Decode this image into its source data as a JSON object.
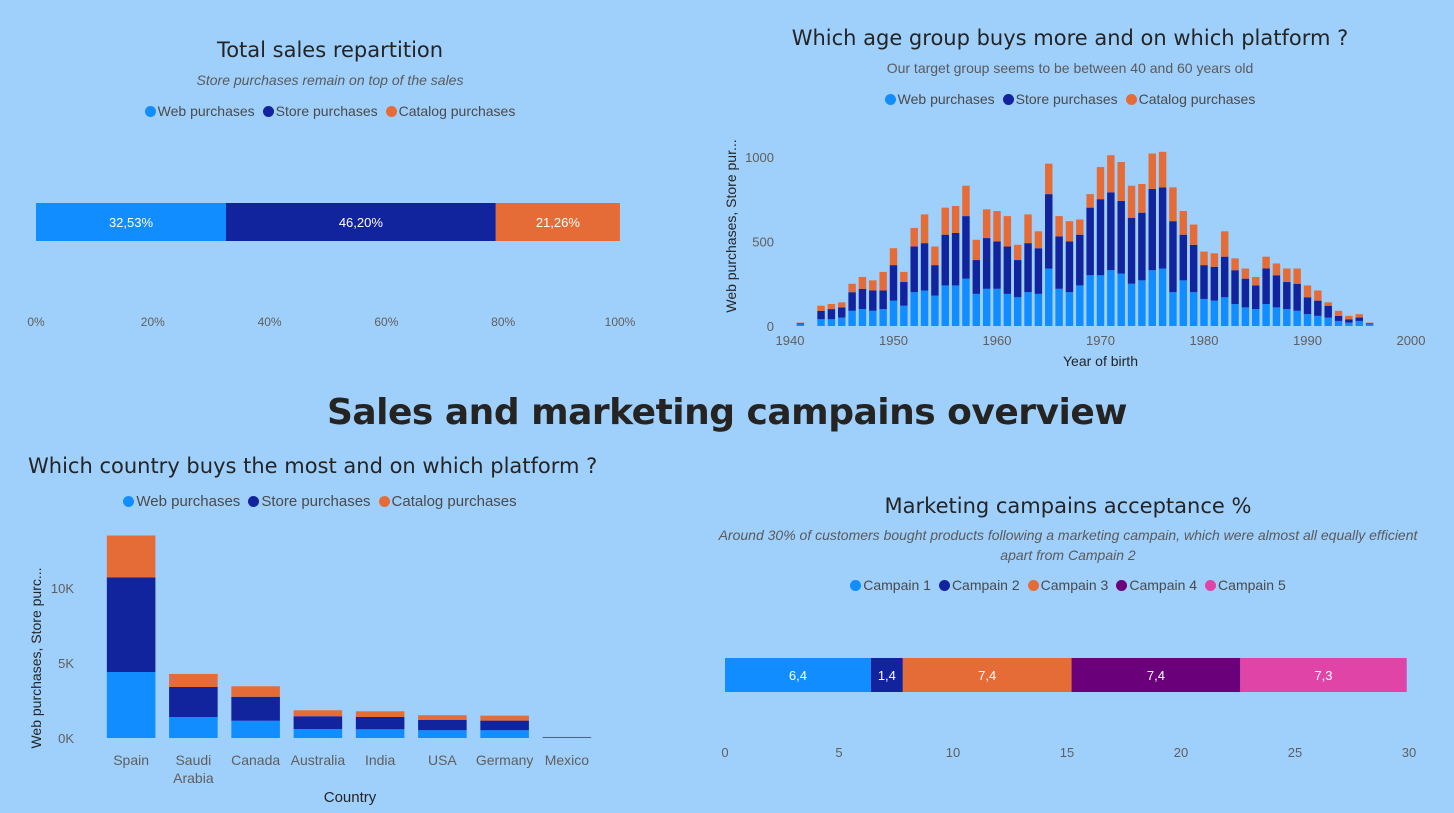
{
  "dashboard": {
    "title": "Sales and marketing campains overview"
  },
  "colors": {
    "web": "#118dff",
    "store": "#12239e",
    "catalog": "#e66c37",
    "campaign4": "#6b007b",
    "campaign5": "#e044a7",
    "background": "#9fd0fc"
  },
  "chart_data": [
    {
      "id": "total-sales",
      "type": "bar",
      "orientation": "horizontal-100pct-stacked",
      "title": "Total sales repartition",
      "subtitle": "Store purchases remain on top of the sales",
      "legend_position": "top-center",
      "series": [
        {
          "name": "Web purchases",
          "value": 32.53,
          "label": "32,53%",
          "color_key": "web"
        },
        {
          "name": "Store purchases",
          "value": 46.2,
          "label": "46,20%",
          "color_key": "store"
        },
        {
          "name": "Catalog purchases",
          "value": 21.26,
          "label": "21,26%",
          "color_key": "catalog"
        }
      ],
      "xlim": [
        0,
        100
      ],
      "ticks": [
        "0%",
        "20%",
        "40%",
        "60%",
        "80%",
        "100%"
      ]
    },
    {
      "id": "age-group",
      "type": "bar",
      "orientation": "vertical-stacked",
      "title": "Which age group buys more and on which platform ?",
      "subtitle": "Our target group seems to be between 40 and 60 years old",
      "xlabel": "Year of birth",
      "ylabel": "Web purchases, Store pur...",
      "legend_position": "top-center",
      "xlim": [
        1940,
        2000
      ],
      "ylim": [
        0,
        1100
      ],
      "xticks": [
        "1940",
        "1950",
        "1960",
        "1970",
        "1980",
        "1990",
        "2000"
      ],
      "yticks": [
        "0",
        "500",
        "1000"
      ],
      "x": [
        1941,
        1943,
        1944,
        1945,
        1946,
        1947,
        1948,
        1949,
        1950,
        1951,
        1952,
        1953,
        1954,
        1955,
        1956,
        1957,
        1958,
        1959,
        1960,
        1961,
        1962,
        1963,
        1964,
        1965,
        1966,
        1967,
        1968,
        1969,
        1970,
        1971,
        1972,
        1973,
        1974,
        1975,
        1976,
        1977,
        1978,
        1979,
        1980,
        1981,
        1982,
        1983,
        1984,
        1985,
        1986,
        1987,
        1988,
        1989,
        1990,
        1991,
        1992,
        1993,
        1994,
        1995,
        1996
      ],
      "series": [
        {
          "name": "Web purchases",
          "values": [
            10,
            40,
            40,
            50,
            90,
            100,
            90,
            100,
            150,
            120,
            200,
            210,
            180,
            240,
            240,
            280,
            190,
            220,
            220,
            190,
            170,
            200,
            190,
            340,
            220,
            200,
            240,
            300,
            300,
            330,
            310,
            250,
            270,
            330,
            340,
            200,
            270,
            200,
            160,
            150,
            170,
            130,
            110,
            100,
            130,
            110,
            100,
            90,
            70,
            60,
            50,
            30,
            20,
            30,
            10
          ]
        },
        {
          "name": "Store purchases",
          "values": [
            5,
            50,
            60,
            60,
            110,
            120,
            120,
            110,
            210,
            140,
            270,
            280,
            180,
            300,
            310,
            370,
            200,
            300,
            280,
            280,
            220,
            290,
            270,
            440,
            310,
            300,
            300,
            400,
            450,
            460,
            430,
            390,
            400,
            480,
            480,
            420,
            270,
            280,
            200,
            200,
            240,
            200,
            170,
            140,
            210,
            190,
            160,
            160,
            100,
            90,
            70,
            30,
            20,
            20,
            5
          ]
        },
        {
          "name": "Catalog purchases",
          "values": [
            5,
            30,
            30,
            30,
            50,
            70,
            60,
            110,
            100,
            60,
            110,
            170,
            110,
            160,
            160,
            180,
            120,
            170,
            180,
            180,
            90,
            170,
            100,
            180,
            120,
            120,
            90,
            80,
            190,
            220,
            230,
            190,
            170,
            210,
            210,
            200,
            140,
            120,
            80,
            80,
            150,
            70,
            60,
            50,
            70,
            70,
            80,
            90,
            70,
            60,
            20,
            30,
            20,
            20,
            5
          ]
        }
      ]
    },
    {
      "id": "country",
      "type": "bar",
      "orientation": "vertical-stacked",
      "title": "Which country buys the most and on which platform ?",
      "xlabel": "Country",
      "ylabel": "Web purchases, Store purc...",
      "legend_position": "top-center",
      "ylim": [
        0,
        14000
      ],
      "yticks": [
        "0K",
        "5K",
        "10K"
      ],
      "categories": [
        "Spain",
        "Saudi Arabia",
        "Canada",
        "Australia",
        "India",
        "USA",
        "Germany",
        "Mexico"
      ],
      "series": [
        {
          "name": "Web purchases",
          "values": [
            4400,
            1400,
            1150,
            600,
            580,
            520,
            520,
            20
          ]
        },
        {
          "name": "Store purchases",
          "values": [
            6300,
            2000,
            1600,
            850,
            820,
            680,
            640,
            40
          ]
        },
        {
          "name": "Catalog purchases",
          "values": [
            2800,
            870,
            700,
            400,
            380,
            320,
            330,
            10
          ]
        }
      ]
    },
    {
      "id": "campaigns",
      "type": "bar",
      "orientation": "horizontal-stacked",
      "title": "Marketing campains acceptance %",
      "subtitle": "Around 30% of customers bought products following a marketing campain, which were almost all equally efficient apart from Campain 2",
      "legend_position": "top-center",
      "xlim": [
        0,
        30
      ],
      "ticks": [
        "0",
        "5",
        "10",
        "15",
        "20",
        "25",
        "30"
      ],
      "series": [
        {
          "name": "Campain 1",
          "value": 6.4,
          "label": "6,4",
          "color_key": "web"
        },
        {
          "name": "Campain 2",
          "value": 1.4,
          "label": "1,4",
          "color_key": "store"
        },
        {
          "name": "Campain 3",
          "value": 7.4,
          "label": "7,4",
          "color_key": "catalog"
        },
        {
          "name": "Campain 4",
          "value": 7.4,
          "label": "7,4",
          "color_key": "campaign4"
        },
        {
          "name": "Campain 5",
          "value": 7.3,
          "label": "7,3",
          "color_key": "campaign5"
        }
      ]
    }
  ]
}
